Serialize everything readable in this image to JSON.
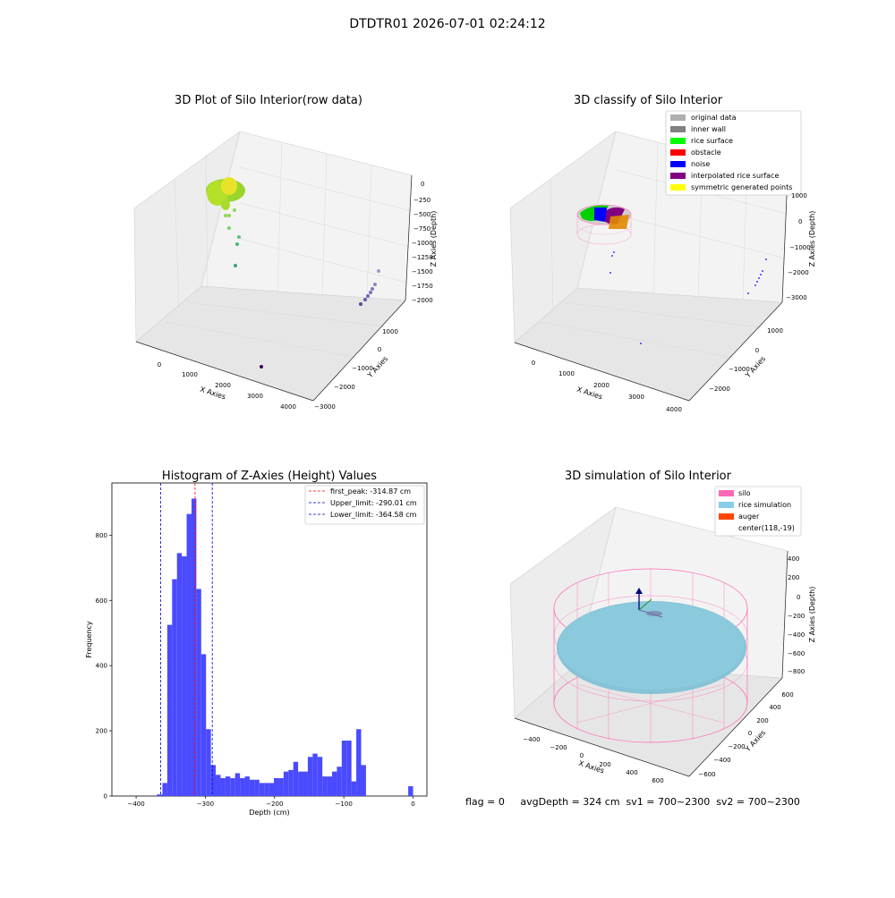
{
  "figure": {
    "suptitle": "DTDTR01 2026-07-01 02:24:12",
    "footer": "flag = 0     avgDepth = 324 cm  sv1 = 700~2300  sv2 = 700~2300"
  },
  "panes": {
    "raw": {
      "title": "3D Plot of Silo Interior(row data)",
      "xlabel": "X Axies",
      "ylabel": "Y Axies",
      "zlabel": "Z Axies (Depth)",
      "xticks": [
        "0",
        "1000",
        "2000",
        "3000",
        "4000"
      ],
      "yticks": [
        "1000",
        "0",
        "−1000",
        "−2000",
        "−3000"
      ],
      "zticks": [
        "0",
        "−250",
        "−500",
        "−750",
        "−1000",
        "−1250",
        "−1500",
        "−1750",
        "−2000"
      ]
    },
    "classify": {
      "title": "3D classify of Silo Interior",
      "xlabel": "X Axies",
      "ylabel": "Y Axies",
      "zlabel": "Z Axies (Depth)",
      "xticks": [
        "0",
        "1000",
        "2000",
        "3000",
        "4000"
      ],
      "yticks": [
        "1000",
        "0",
        "−1000",
        "−2000"
      ],
      "zticks": [
        "1000",
        "0",
        "−1000",
        "−2000",
        "−3000"
      ],
      "legend": [
        {
          "label": "original data",
          "color": "#b0b0b0"
        },
        {
          "label": "inner wall",
          "color": "#808080"
        },
        {
          "label": "rice surface",
          "color": "#00ff00"
        },
        {
          "label": "obstacle",
          "color": "#ff0000"
        },
        {
          "label": "noise",
          "color": "#0000ff"
        },
        {
          "label": "interpolated rice surface",
          "color": "#800080"
        },
        {
          "label": "symmetric generated points",
          "color": "#ffff00"
        }
      ]
    },
    "simulation": {
      "title": "3D simulation of Silo Interior",
      "xlabel": "X Axies",
      "ylabel": "Y Axies",
      "zlabel": "Z Axies (Depth)",
      "xticks": [
        "−400",
        "−200",
        "0",
        "200",
        "400",
        "600"
      ],
      "yticks": [
        "600",
        "400",
        "200",
        "0",
        "−200",
        "−400",
        "−600"
      ],
      "zticks": [
        "400",
        "200",
        "0",
        "−200",
        "−400",
        "−600",
        "−800"
      ],
      "legend": [
        {
          "label": "silo",
          "color": "#ff69b4"
        },
        {
          "label": "rice simulation",
          "color": "#87ceeb"
        },
        {
          "label": "auger",
          "color": "#ff4500"
        },
        {
          "label": "center(118,-19)",
          "color": ""
        }
      ]
    }
  },
  "chart_data": {
    "type": "bar",
    "title": "Histogram of Z-Axies (Height) Values",
    "xlabel": "Depth (cm)",
    "ylabel": "Frequency",
    "xlim": [
      -435,
      20
    ],
    "ylim": [
      0,
      960
    ],
    "xticks": [
      -400,
      -300,
      -200,
      -100,
      0
    ],
    "yticks": [
      0,
      200,
      400,
      600,
      800
    ],
    "bar_color": "#4a4aff",
    "bins": [
      {
        "x0": -370,
        "x1": -362,
        "v": 5
      },
      {
        "x0": -362,
        "x1": -355,
        "v": 40
      },
      {
        "x0": -355,
        "x1": -348,
        "v": 525
      },
      {
        "x0": -348,
        "x1": -341,
        "v": 665
      },
      {
        "x0": -341,
        "x1": -334,
        "v": 745
      },
      {
        "x0": -334,
        "x1": -327,
        "v": 735
      },
      {
        "x0": -327,
        "x1": -320,
        "v": 865
      },
      {
        "x0": -320,
        "x1": -313,
        "v": 912
      },
      {
        "x0": -313,
        "x1": -306,
        "v": 635
      },
      {
        "x0": -306,
        "x1": -299,
        "v": 435
      },
      {
        "x0": -299,
        "x1": -292,
        "v": 205
      },
      {
        "x0": -292,
        "x1": -285,
        "v": 95
      },
      {
        "x0": -285,
        "x1": -278,
        "v": 65
      },
      {
        "x0": -278,
        "x1": -271,
        "v": 55
      },
      {
        "x0": -271,
        "x1": -264,
        "v": 60
      },
      {
        "x0": -264,
        "x1": -257,
        "v": 55
      },
      {
        "x0": -257,
        "x1": -250,
        "v": 70
      },
      {
        "x0": -250,
        "x1": -243,
        "v": 55
      },
      {
        "x0": -243,
        "x1": -236,
        "v": 60
      },
      {
        "x0": -236,
        "x1": -229,
        "v": 50
      },
      {
        "x0": -229,
        "x1": -222,
        "v": 50
      },
      {
        "x0": -222,
        "x1": -215,
        "v": 40
      },
      {
        "x0": -215,
        "x1": -208,
        "v": 40
      },
      {
        "x0": -208,
        "x1": -201,
        "v": 40
      },
      {
        "x0": -201,
        "x1": -194,
        "v": 55
      },
      {
        "x0": -194,
        "x1": -187,
        "v": 55
      },
      {
        "x0": -187,
        "x1": -180,
        "v": 75
      },
      {
        "x0": -180,
        "x1": -173,
        "v": 80
      },
      {
        "x0": -173,
        "x1": -166,
        "v": 105
      },
      {
        "x0": -166,
        "x1": -159,
        "v": 75
      },
      {
        "x0": -159,
        "x1": -152,
        "v": 75
      },
      {
        "x0": -152,
        "x1": -145,
        "v": 120
      },
      {
        "x0": -145,
        "x1": -138,
        "v": 130
      },
      {
        "x0": -138,
        "x1": -131,
        "v": 120
      },
      {
        "x0": -131,
        "x1": -124,
        "v": 60
      },
      {
        "x0": -124,
        "x1": -117,
        "v": 60
      },
      {
        "x0": -117,
        "x1": -110,
        "v": 75
      },
      {
        "x0": -110,
        "x1": -103,
        "v": 90
      },
      {
        "x0": -103,
        "x1": -96,
        "v": 170
      },
      {
        "x0": -96,
        "x1": -89,
        "v": 170
      },
      {
        "x0": -89,
        "x1": -82,
        "v": 45
      },
      {
        "x0": -82,
        "x1": -75,
        "v": 205
      },
      {
        "x0": -75,
        "x1": -68,
        "v": 95
      },
      {
        "x0": -68,
        "x1": -61,
        "v": 0
      },
      {
        "x0": -61,
        "x1": -54,
        "v": 0
      },
      {
        "x0": -7,
        "x1": 0,
        "v": 30
      }
    ],
    "vlines": [
      {
        "label": "first_peak: -314.87 cm",
        "x": -314.87,
        "color": "#ff0000"
      },
      {
        "label": "Upper_limit: -290.01 cm",
        "x": -290.01,
        "color": "#0000cc"
      },
      {
        "label": "Lower_limit: -364.58 cm",
        "x": -364.58,
        "color": "#0000cc"
      }
    ]
  }
}
